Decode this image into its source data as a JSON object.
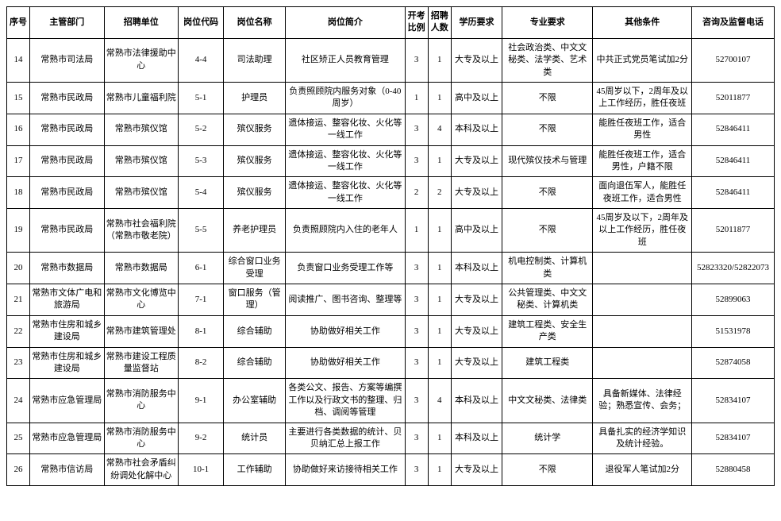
{
  "table": {
    "columns": [
      {
        "key": "seq",
        "label": "序号"
      },
      {
        "key": "dept",
        "label": "主管部门"
      },
      {
        "key": "unit",
        "label": "招聘单位"
      },
      {
        "key": "code",
        "label": "岗位代码"
      },
      {
        "key": "pos",
        "label": "岗位名称"
      },
      {
        "key": "desc",
        "label": "岗位简介"
      },
      {
        "key": "ratio",
        "label": "开考比例"
      },
      {
        "key": "count",
        "label": "招聘人数"
      },
      {
        "key": "edu",
        "label": "学历要求"
      },
      {
        "key": "major",
        "label": "专业要求"
      },
      {
        "key": "other",
        "label": "其他条件"
      },
      {
        "key": "phone",
        "label": "咨询及监督电话"
      }
    ],
    "rows": [
      {
        "seq": "14",
        "dept": "常熟市司法局",
        "unit": "常熟市法律援助中心",
        "code": "4-4",
        "pos": "司法助理",
        "desc": "社区矫正人员教育管理",
        "ratio": "3",
        "count": "1",
        "edu": "大专及以上",
        "major": "社会政治类、中文文秘类、法学类、艺术类",
        "other": "中共正式党员笔试加2分",
        "phone": "52700107"
      },
      {
        "seq": "15",
        "dept": "常熟市民政局",
        "unit": "常熟市儿童福利院",
        "code": "5-1",
        "pos": "护理员",
        "desc": "负责照顾院内服务对象（0-40周岁）",
        "ratio": "1",
        "count": "1",
        "edu": "高中及以上",
        "major": "不限",
        "other": "45周岁以下，2周年及以上工作经历，胜任夜班",
        "phone": "52011877"
      },
      {
        "seq": "16",
        "dept": "常熟市民政局",
        "unit": "常熟市殡仪馆",
        "code": "5-2",
        "pos": "殡仪服务",
        "desc": "遗体接运、整容化妆、火化等一线工作",
        "ratio": "3",
        "count": "4",
        "edu": "本科及以上",
        "major": "不限",
        "other": "能胜任夜班工作，适合男性",
        "phone": "52846411"
      },
      {
        "seq": "17",
        "dept": "常熟市民政局",
        "unit": "常熟市殡仪馆",
        "code": "5-3",
        "pos": "殡仪服务",
        "desc": "遗体接运、整容化妆、火化等一线工作",
        "ratio": "3",
        "count": "1",
        "edu": "大专及以上",
        "major": "现代殡仪技术与管理",
        "other": "能胜任夜班工作，适合男性，户籍不限",
        "phone": "52846411"
      },
      {
        "seq": "18",
        "dept": "常熟市民政局",
        "unit": "常熟市殡仪馆",
        "code": "5-4",
        "pos": "殡仪服务",
        "desc": "遗体接运、整容化妆、火化等一线工作",
        "ratio": "2",
        "count": "2",
        "edu": "大专及以上",
        "major": "不限",
        "other": "面向退伍军人，能胜任夜班工作，适合男性",
        "phone": "52846411"
      },
      {
        "seq": "19",
        "dept": "常熟市民政局",
        "unit": "常熟市社会福利院（常熟市敬老院）",
        "code": "5-5",
        "pos": "养老护理员",
        "desc": "负责照顾院内入住的老年人",
        "ratio": "1",
        "count": "1",
        "edu": "高中及以上",
        "major": "不限",
        "other": "45周岁及以下，2周年及以上工作经历，胜任夜班",
        "phone": "52011877"
      },
      {
        "seq": "20",
        "dept": "常熟市数据局",
        "unit": "常熟市数据局",
        "code": "6-1",
        "pos": "综合窗口业务受理",
        "desc": "负责窗口业务受理工作等",
        "ratio": "3",
        "count": "1",
        "edu": "本科及以上",
        "major": "机电控制类、计算机类",
        "other": "",
        "phone": "52823320/52822073"
      },
      {
        "seq": "21",
        "dept": "常熟市文体广电和旅游局",
        "unit": "常熟市文化博览中心",
        "code": "7-1",
        "pos": "窗口服务（管理）",
        "desc": "阅读推广、图书咨询、整理等",
        "ratio": "3",
        "count": "1",
        "edu": "大专及以上",
        "major": "公共管理类、中文文秘类、计算机类",
        "other": "",
        "phone": "52899063"
      },
      {
        "seq": "22",
        "dept": "常熟市住房和城乡建设局",
        "unit": "常熟市建筑管理处",
        "code": "8-1",
        "pos": "综合辅助",
        "desc": "协助做好相关工作",
        "ratio": "3",
        "count": "1",
        "edu": "大专及以上",
        "major": "建筑工程类、安全生产类",
        "other": "",
        "phone": "51531978"
      },
      {
        "seq": "23",
        "dept": "常熟市住房和城乡建设局",
        "unit": "常熟市建设工程质量监督站",
        "code": "8-2",
        "pos": "综合辅助",
        "desc": "协助做好相关工作",
        "ratio": "3",
        "count": "1",
        "edu": "大专及以上",
        "major": "建筑工程类",
        "other": "",
        "phone": "52874058"
      },
      {
        "seq": "24",
        "dept": "常熟市应急管理局",
        "unit": "常熟市消防服务中心",
        "code": "9-1",
        "pos": "办公室辅助",
        "desc": "各类公文、报告、方案等编撰工作以及行政文书的整理、归档、调阅等管理",
        "ratio": "3",
        "count": "4",
        "edu": "本科及以上",
        "major": "中文文秘类、法律类",
        "other": "具备新媒体、法律经验；熟悉宣传、会务；",
        "phone": "52834107"
      },
      {
        "seq": "25",
        "dept": "常熟市应急管理局",
        "unit": "常熟市消防服务中心",
        "code": "9-2",
        "pos": "统计员",
        "desc": "主要进行各类数据的统计、贝贝纳汇总上报工作",
        "ratio": "3",
        "count": "1",
        "edu": "本科及以上",
        "major": "统计学",
        "other": "具备扎实的经济学知识及统计经验。",
        "phone": "52834107"
      },
      {
        "seq": "26",
        "dept": "常熟市信访局",
        "unit": "常熟市社会矛盾纠纷调处化解中心",
        "code": "10-1",
        "pos": "工作辅助",
        "desc": "协助做好来访接待相关工作",
        "ratio": "3",
        "count": "1",
        "edu": "大专及以上",
        "major": "不限",
        "other": "退役军人笔试加2分",
        "phone": "52880458"
      }
    ],
    "colClasses": [
      "col-seq",
      "col-dept",
      "col-unit",
      "col-code",
      "col-pos",
      "col-desc",
      "col-ratio",
      "col-count",
      "col-edu",
      "col-major",
      "col-other",
      "col-phone"
    ]
  },
  "styling": {
    "background_color": "#ffffff",
    "border_color": "#000000",
    "text_color": "#000000",
    "font_family": "SimSun, 宋体, serif",
    "cell_font_size": 11,
    "header_font_weight": "bold"
  }
}
